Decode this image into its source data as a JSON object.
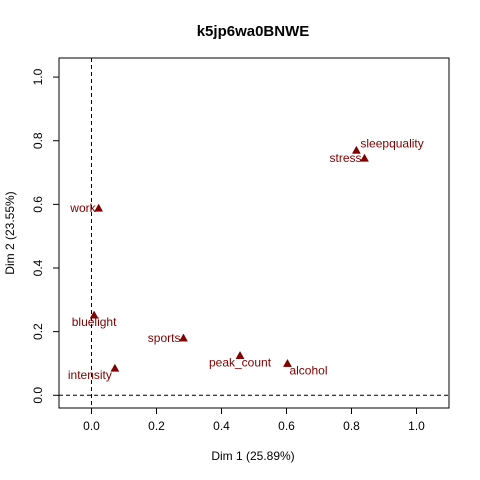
{
  "chart_data": {
    "type": "scatter",
    "title": "k5jp6wa0BNWE",
    "xlabel": "Dim 1 (25.89%)",
    "ylabel": "Dim 2 (23.55%)",
    "xlim": [
      -0.1,
      1.1
    ],
    "ylim": [
      -0.04,
      1.06
    ],
    "xticks": [
      0.0,
      0.2,
      0.4,
      0.6,
      0.8,
      1.0
    ],
    "yticks": [
      0.0,
      0.2,
      0.4,
      0.6,
      0.8,
      1.0
    ],
    "xtick_labels": [
      "0.0",
      "0.2",
      "0.4",
      "0.6",
      "0.8",
      "1.0"
    ],
    "ytick_labels": [
      "0.0",
      "0.2",
      "0.4",
      "0.6",
      "0.8",
      "1.0"
    ],
    "reference_lines": {
      "x": 0,
      "y": 0,
      "style": "dashed"
    },
    "marker": "triangle",
    "color": "#800000",
    "points": [
      {
        "label": "sleepquality",
        "x": 0.815,
        "y": 0.77,
        "anchor": "right"
      },
      {
        "label": "stress",
        "x": 0.84,
        "y": 0.745,
        "anchor": "left"
      },
      {
        "label": "work",
        "x": 0.022,
        "y": 0.588,
        "anchor": "left"
      },
      {
        "label": "bluelight",
        "x": 0.008,
        "y": 0.252,
        "anchor": "below"
      },
      {
        "label": "sports",
        "x": 0.283,
        "y": 0.18,
        "anchor": "left"
      },
      {
        "label": "peak_count",
        "x": 0.457,
        "y": 0.125,
        "anchor": "below"
      },
      {
        "label": "alcohol",
        "x": 0.603,
        "y": 0.1,
        "anchor": "below-right"
      },
      {
        "label": "intensity",
        "x": 0.072,
        "y": 0.085,
        "anchor": "below-left"
      }
    ]
  }
}
